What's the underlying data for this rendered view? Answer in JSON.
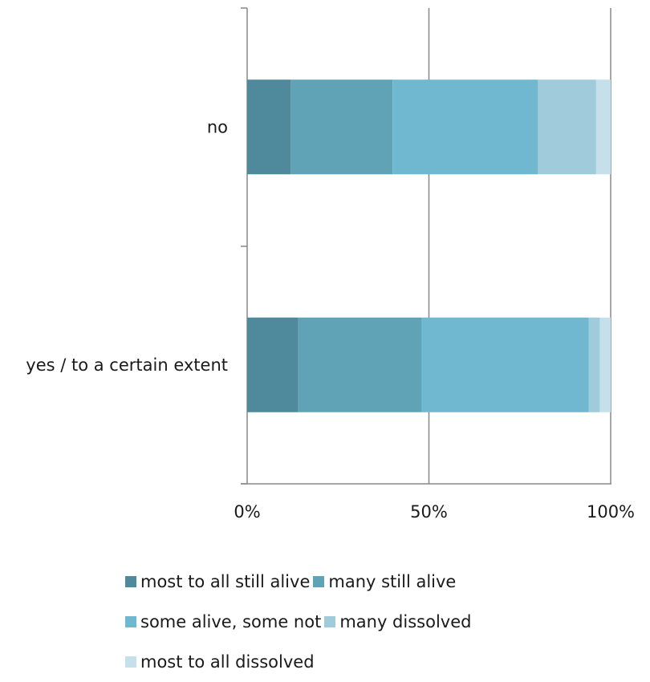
{
  "chart_data": {
    "type": "bar",
    "orientation": "horizontal",
    "stacked": "percent",
    "categories": [
      "no",
      "yes / to a certain extent"
    ],
    "series": [
      {
        "name": "most to all still alive",
        "color": "#4f8a9c",
        "values": [
          12,
          14
        ]
      },
      {
        "name": "many still alive",
        "color": "#60a3b7",
        "values": [
          28,
          34
        ]
      },
      {
        "name": "some alive, some not",
        "color": "#6fb8d0",
        "values": [
          40,
          46
        ]
      },
      {
        "name": "many dissolved",
        "color": "#9fcbdb",
        "values": [
          16,
          3
        ]
      },
      {
        "name": "most to all dissolved",
        "color": "#c5e0ea",
        "values": [
          4,
          3
        ]
      }
    ],
    "xticks": [
      "0%",
      "50%",
      "100%"
    ],
    "xlim": [
      0,
      100
    ],
    "grid": "vertical",
    "legend_position": "bottom"
  }
}
